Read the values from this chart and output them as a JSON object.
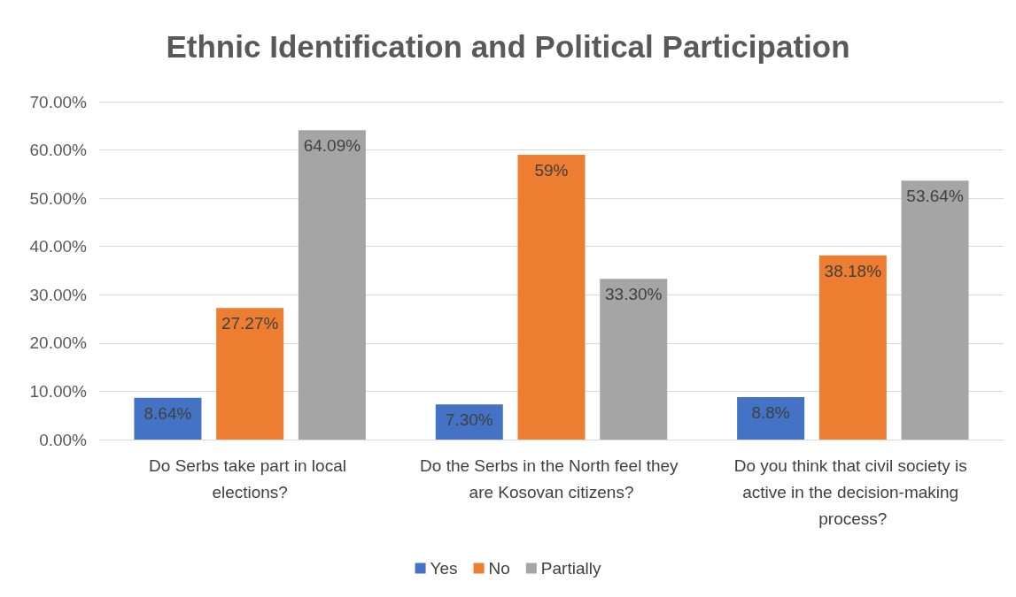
{
  "chart_data": {
    "type": "bar",
    "title": "Ethnic Identification and Political Participation",
    "categories": [
      "Do Serbs take part in local elections?",
      "Do the Serbs in the North feel they are Kosovan citizens?",
      "Do you think that civil society is active in the decision-making process?"
    ],
    "series": [
      {
        "name": "Yes",
        "color": "#4472c4",
        "values": [
          8.64,
          7.3,
          8.8
        ],
        "value_labels": [
          "8.64%",
          "7.30%",
          "8.8%"
        ]
      },
      {
        "name": "No",
        "color": "#ed7d31",
        "values": [
          27.27,
          59,
          38.18
        ],
        "value_labels": [
          "27.27%",
          "59%",
          "38.18%"
        ]
      },
      {
        "name": "Partially",
        "color": "#a5a5a5",
        "values": [
          64.09,
          33.3,
          53.64
        ],
        "value_labels": [
          "64.09%",
          "33.30%",
          "53.64%"
        ]
      }
    ],
    "ylim": [
      0,
      70
    ],
    "yticks": [
      {
        "value": 0,
        "label": "0.00%"
      },
      {
        "value": 10,
        "label": "10.00%"
      },
      {
        "value": 20,
        "label": "20.00%"
      },
      {
        "value": 30,
        "label": "30.00%"
      },
      {
        "value": 40,
        "label": "40.00%"
      },
      {
        "value": 50,
        "label": "50.00%"
      },
      {
        "value": 60,
        "label": "60.00%"
      },
      {
        "value": 70,
        "label": "70.00%"
      }
    ],
    "grid": "y",
    "legend": "bottom"
  }
}
